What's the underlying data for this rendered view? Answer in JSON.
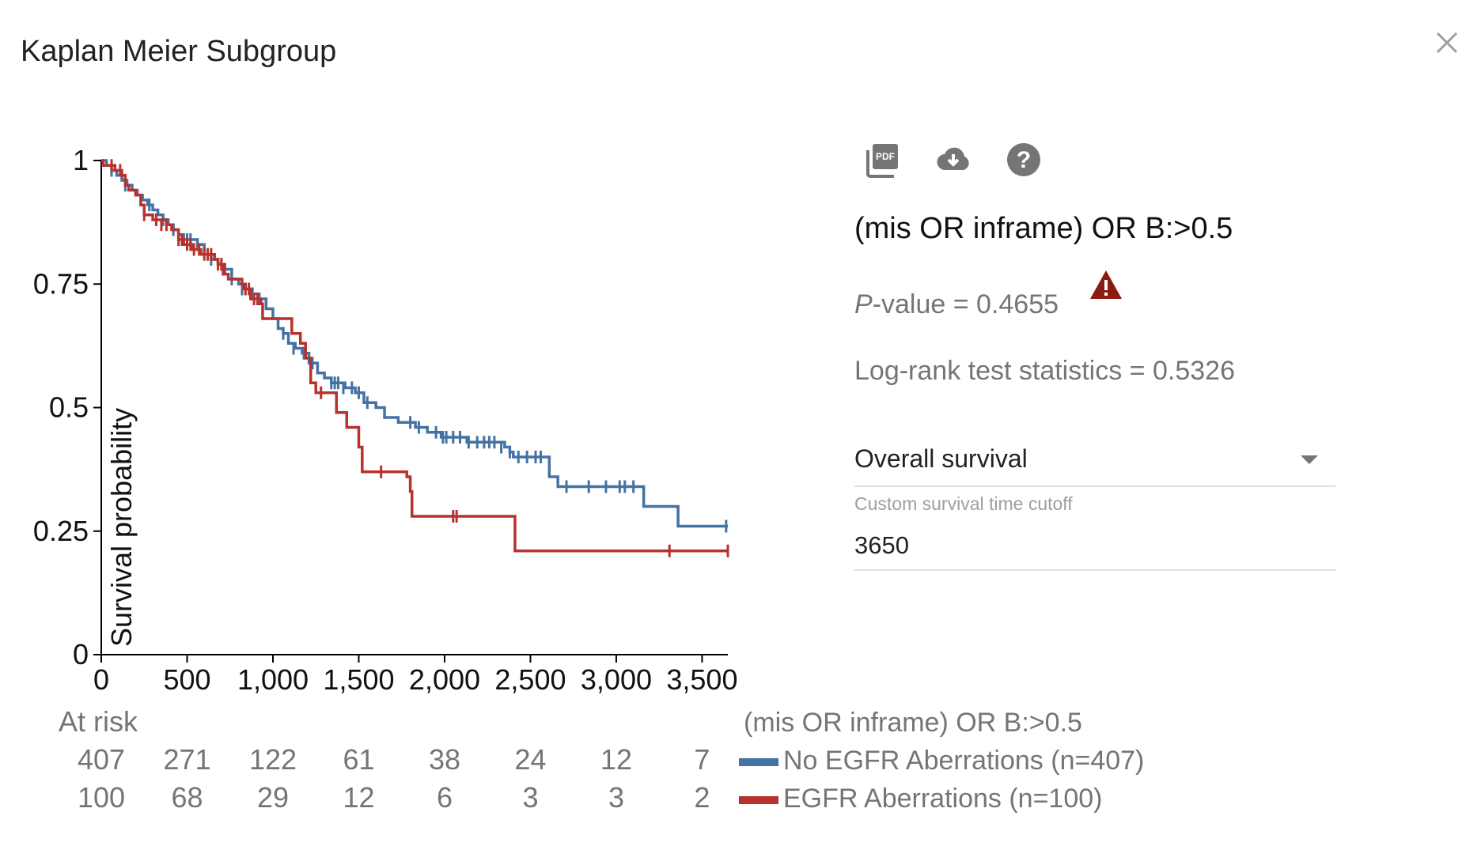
{
  "dialog": {
    "title": "Kaplan Meier Subgroup",
    "subgroup_label": "(mis OR inframe) OR B:>0.5",
    "pvalue_label": "P",
    "pvalue_text": "-value = 0.4655",
    "logrank_text": "Log-rank test statistics = 0.5326",
    "survival_select": "Overall survival",
    "cutoff_label": "Custom survival time cutoff",
    "cutoff_value": "3650"
  },
  "toolbar": {
    "pdf_icon": "pdf-icon",
    "download_icon": "cloud-download-icon",
    "help_icon": "help-icon",
    "close_icon": "close-icon",
    "warning_icon": "warning-icon"
  },
  "colors": {
    "series_blue": "#4472a4",
    "series_red": "#b8322d",
    "warning": "#8b1a10",
    "icon_gray": "#757575"
  },
  "chart_data": {
    "type": "line",
    "ylabel": "Survival probability",
    "xlabel": "",
    "xlim": [
      0,
      3650
    ],
    "ylim": [
      0,
      1
    ],
    "xticks": [
      0,
      500,
      1000,
      1500,
      2000,
      2500,
      3000,
      3500
    ],
    "xtick_labels": [
      "0",
      "500",
      "1,000",
      "1,500",
      "2,000",
      "2,500",
      "3,000",
      "3,500"
    ],
    "yticks": [
      0,
      0.25,
      0.5,
      0.75,
      1
    ],
    "ytick_labels": [
      "0",
      "0.25",
      "0.5",
      "0.75",
      "1"
    ],
    "legend_title": "(mis OR inframe) OR B:>0.5",
    "series": [
      {
        "name": "No EGFR Aberrations (n=407)",
        "color": "#4472a4",
        "steps": [
          [
            0,
            1
          ],
          [
            30,
            0.99
          ],
          [
            60,
            0.98
          ],
          [
            90,
            0.97
          ],
          [
            120,
            0.96
          ],
          [
            150,
            0.95
          ],
          [
            180,
            0.94
          ],
          [
            210,
            0.93
          ],
          [
            240,
            0.92
          ],
          [
            270,
            0.91
          ],
          [
            300,
            0.9
          ],
          [
            330,
            0.89
          ],
          [
            360,
            0.88
          ],
          [
            390,
            0.87
          ],
          [
            420,
            0.86
          ],
          [
            450,
            0.85
          ],
          [
            480,
            0.84
          ],
          [
            560,
            0.83
          ],
          [
            600,
            0.81
          ],
          [
            640,
            0.8
          ],
          [
            680,
            0.79
          ],
          [
            720,
            0.78
          ],
          [
            760,
            0.76
          ],
          [
            800,
            0.75
          ],
          [
            840,
            0.74
          ],
          [
            880,
            0.73
          ],
          [
            920,
            0.72
          ],
          [
            960,
            0.7
          ],
          [
            1000,
            0.68
          ],
          [
            1030,
            0.66
          ],
          [
            1060,
            0.65
          ],
          [
            1090,
            0.63
          ],
          [
            1130,
            0.62
          ],
          [
            1170,
            0.61
          ],
          [
            1210,
            0.59
          ],
          [
            1260,
            0.57
          ],
          [
            1300,
            0.56
          ],
          [
            1340,
            0.55
          ],
          [
            1420,
            0.54
          ],
          [
            1480,
            0.53
          ],
          [
            1530,
            0.51
          ],
          [
            1600,
            0.5
          ],
          [
            1650,
            0.48
          ],
          [
            1730,
            0.47
          ],
          [
            1830,
            0.46
          ],
          [
            1900,
            0.45
          ],
          [
            1980,
            0.44
          ],
          [
            2130,
            0.43
          ],
          [
            2350,
            0.42
          ],
          [
            2380,
            0.41
          ],
          [
            2400,
            0.4
          ],
          [
            2610,
            0.36
          ],
          [
            2660,
            0.34
          ],
          [
            3160,
            0.3
          ],
          [
            3360,
            0.26
          ],
          [
            3650,
            0.26
          ]
        ],
        "censored": [
          [
            60,
            0.98
          ],
          [
            140,
            0.95
          ],
          [
            230,
            0.92
          ],
          [
            280,
            0.91
          ],
          [
            360,
            0.88
          ],
          [
            420,
            0.86
          ],
          [
            500,
            0.84
          ],
          [
            520,
            0.84
          ],
          [
            560,
            0.83
          ],
          [
            640,
            0.8
          ],
          [
            700,
            0.79
          ],
          [
            760,
            0.76
          ],
          [
            820,
            0.74
          ],
          [
            880,
            0.73
          ],
          [
            920,
            0.72
          ],
          [
            1060,
            0.65
          ],
          [
            1120,
            0.62
          ],
          [
            1180,
            0.61
          ],
          [
            1230,
            0.59
          ],
          [
            1340,
            0.55
          ],
          [
            1360,
            0.55
          ],
          [
            1380,
            0.55
          ],
          [
            1410,
            0.54
          ],
          [
            1460,
            0.54
          ],
          [
            1500,
            0.53
          ],
          [
            1550,
            0.51
          ],
          [
            1800,
            0.47
          ],
          [
            1850,
            0.46
          ],
          [
            1950,
            0.45
          ],
          [
            1990,
            0.44
          ],
          [
            2010,
            0.44
          ],
          [
            2050,
            0.44
          ],
          [
            2090,
            0.44
          ],
          [
            2140,
            0.43
          ],
          [
            2190,
            0.43
          ],
          [
            2230,
            0.43
          ],
          [
            2260,
            0.43
          ],
          [
            2290,
            0.43
          ],
          [
            2330,
            0.42
          ],
          [
            2380,
            0.41
          ],
          [
            2430,
            0.4
          ],
          [
            2480,
            0.4
          ],
          [
            2530,
            0.4
          ],
          [
            2560,
            0.4
          ],
          [
            2710,
            0.34
          ],
          [
            2840,
            0.34
          ],
          [
            2940,
            0.34
          ],
          [
            3020,
            0.34
          ],
          [
            3050,
            0.34
          ],
          [
            3100,
            0.34
          ],
          [
            3640,
            0.26
          ]
        ]
      },
      {
        "name": "EGFR Aberrations (n=100)",
        "color": "#b8322d",
        "steps": [
          [
            0,
            1
          ],
          [
            10,
            0.99
          ],
          [
            80,
            0.98
          ],
          [
            120,
            0.97
          ],
          [
            140,
            0.95
          ],
          [
            160,
            0.94
          ],
          [
            200,
            0.93
          ],
          [
            230,
            0.91
          ],
          [
            250,
            0.89
          ],
          [
            300,
            0.88
          ],
          [
            380,
            0.87
          ],
          [
            410,
            0.86
          ],
          [
            450,
            0.84
          ],
          [
            480,
            0.83
          ],
          [
            530,
            0.82
          ],
          [
            580,
            0.81
          ],
          [
            660,
            0.8
          ],
          [
            680,
            0.79
          ],
          [
            710,
            0.77
          ],
          [
            740,
            0.76
          ],
          [
            820,
            0.75
          ],
          [
            830,
            0.74
          ],
          [
            870,
            0.72
          ],
          [
            930,
            0.71
          ],
          [
            940,
            0.68
          ],
          [
            1080,
            0.68
          ],
          [
            1110,
            0.65
          ],
          [
            1160,
            0.63
          ],
          [
            1190,
            0.6
          ],
          [
            1220,
            0.55
          ],
          [
            1250,
            0.53
          ],
          [
            1310,
            0.53
          ],
          [
            1370,
            0.49
          ],
          [
            1430,
            0.46
          ],
          [
            1500,
            0.42
          ],
          [
            1520,
            0.37
          ],
          [
            1780,
            0.36
          ],
          [
            1800,
            0.33
          ],
          [
            1810,
            0.28
          ],
          [
            2400,
            0.28
          ],
          [
            2410,
            0.21
          ],
          [
            3650,
            0.21
          ]
        ],
        "censored": [
          [
            60,
            0.99
          ],
          [
            110,
            0.98
          ],
          [
            140,
            0.96
          ],
          [
            250,
            0.89
          ],
          [
            320,
            0.88
          ],
          [
            350,
            0.87
          ],
          [
            380,
            0.87
          ],
          [
            450,
            0.84
          ],
          [
            470,
            0.84
          ],
          [
            500,
            0.83
          ],
          [
            520,
            0.83
          ],
          [
            540,
            0.82
          ],
          [
            570,
            0.82
          ],
          [
            600,
            0.81
          ],
          [
            620,
            0.81
          ],
          [
            640,
            0.81
          ],
          [
            680,
            0.79
          ],
          [
            700,
            0.79
          ],
          [
            720,
            0.78
          ],
          [
            840,
            0.74
          ],
          [
            860,
            0.74
          ],
          [
            870,
            0.73
          ],
          [
            890,
            0.72
          ],
          [
            910,
            0.72
          ],
          [
            1280,
            0.53
          ],
          [
            1630,
            0.37
          ],
          [
            2050,
            0.28
          ],
          [
            2070,
            0.28
          ],
          [
            3310,
            0.21
          ],
          [
            3650,
            0.21
          ]
        ]
      }
    ]
  },
  "at_risk": {
    "label": "At risk",
    "rows": [
      {
        "values": [
          "407",
          "271",
          "122",
          "61",
          "38",
          "24",
          "12",
          "7"
        ]
      },
      {
        "values": [
          "100",
          "68",
          "29",
          "12",
          "6",
          "3",
          "3",
          "2"
        ]
      }
    ]
  }
}
